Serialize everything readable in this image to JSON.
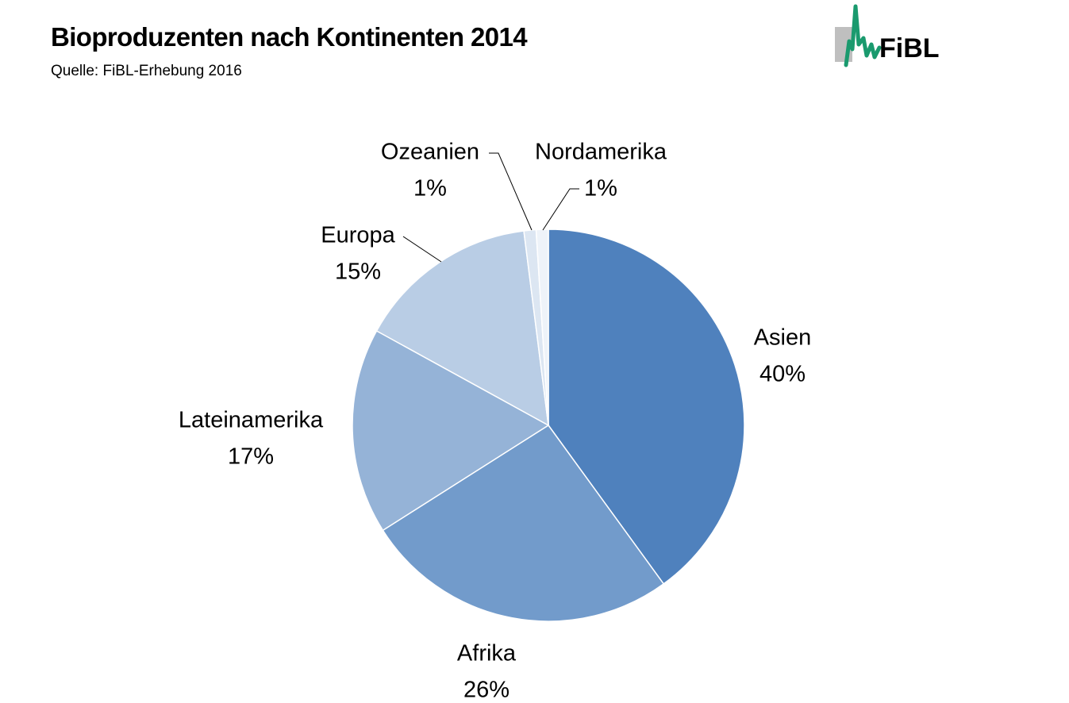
{
  "title": "Bioproduzenten nach Kontinenten 2014",
  "subtitle": "Quelle: FiBL-Erhebung 2016",
  "logo": {
    "text": "FiBL",
    "accent_color": "#1a9a6e",
    "box_color": "#bfbfbf"
  },
  "chart_data": {
    "type": "pie",
    "title": "Bioproduzenten nach Kontinenten 2014",
    "start": "12 o'clock",
    "direction": "clockwise",
    "slices": [
      {
        "label": "Asien",
        "percent_label": "40%",
        "value": 40,
        "color": "#4f81bd"
      },
      {
        "label": "Afrika",
        "percent_label": "26%",
        "value": 26,
        "color": "#729bcb"
      },
      {
        "label": "Lateinamerika",
        "percent_label": "17%",
        "value": 17,
        "color": "#95b3d7"
      },
      {
        "label": "Europa",
        "percent_label": "15%",
        "value": 15,
        "color": "#b9cde5"
      },
      {
        "label": "Ozeanien",
        "percent_label": "1%",
        "value": 1,
        "color": "#dce6f2"
      },
      {
        "label": "Nordamerika",
        "percent_label": "1%",
        "value": 1,
        "color": "#eef3f9"
      }
    ]
  }
}
